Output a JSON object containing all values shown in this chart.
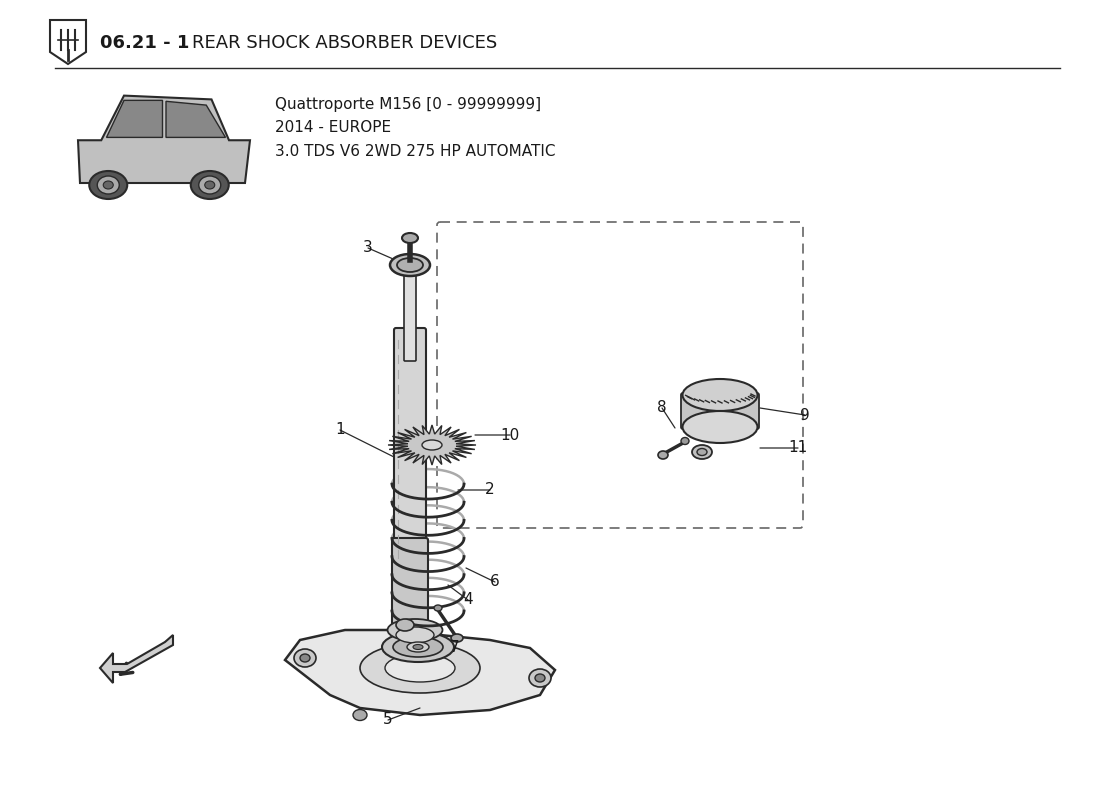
{
  "title_bold": "06.21 - 1",
  "title_normal": " REAR SHOCK ABSORBER DEVICES",
  "subtitle_line1": "Quattroporte M156 [0 - 99999999]",
  "subtitle_line2": "2014 - EUROPE",
  "subtitle_line3": "3.0 TDS V6 2WD 275 HP AUTOMATIC",
  "bg_color": "#ffffff",
  "line_color": "#2a2a2a",
  "text_color": "#1a1a1a",
  "gray_fill": "#d0d0d0",
  "dark_gray": "#888888",
  "light_gray": "#e8e8e8"
}
